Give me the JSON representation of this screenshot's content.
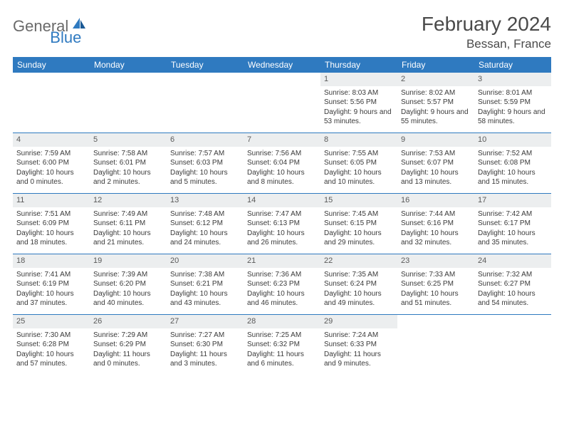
{
  "logo": {
    "text1": "General",
    "text2": "Blue"
  },
  "title": "February 2024",
  "location": "Bessan, France",
  "colors": {
    "header_bar": "#2f7ac0",
    "daynum_bg": "#eceeef",
    "text": "#3a3a3a",
    "title_text": "#4a4a4a",
    "logo_gray": "#6a6a6a",
    "logo_blue": "#2f7ac0",
    "row_border": "#2f7ac0"
  },
  "weekdays": [
    "Sunday",
    "Monday",
    "Tuesday",
    "Wednesday",
    "Thursday",
    "Friday",
    "Saturday"
  ],
  "weeks": [
    [
      null,
      null,
      null,
      null,
      {
        "n": "1",
        "sr": "8:03 AM",
        "ss": "5:56 PM",
        "dl": "9 hours and 53 minutes."
      },
      {
        "n": "2",
        "sr": "8:02 AM",
        "ss": "5:57 PM",
        "dl": "9 hours and 55 minutes."
      },
      {
        "n": "3",
        "sr": "8:01 AM",
        "ss": "5:59 PM",
        "dl": "9 hours and 58 minutes."
      }
    ],
    [
      {
        "n": "4",
        "sr": "7:59 AM",
        "ss": "6:00 PM",
        "dl": "10 hours and 0 minutes."
      },
      {
        "n": "5",
        "sr": "7:58 AM",
        "ss": "6:01 PM",
        "dl": "10 hours and 2 minutes."
      },
      {
        "n": "6",
        "sr": "7:57 AM",
        "ss": "6:03 PM",
        "dl": "10 hours and 5 minutes."
      },
      {
        "n": "7",
        "sr": "7:56 AM",
        "ss": "6:04 PM",
        "dl": "10 hours and 8 minutes."
      },
      {
        "n": "8",
        "sr": "7:55 AM",
        "ss": "6:05 PM",
        "dl": "10 hours and 10 minutes."
      },
      {
        "n": "9",
        "sr": "7:53 AM",
        "ss": "6:07 PM",
        "dl": "10 hours and 13 minutes."
      },
      {
        "n": "10",
        "sr": "7:52 AM",
        "ss": "6:08 PM",
        "dl": "10 hours and 15 minutes."
      }
    ],
    [
      {
        "n": "11",
        "sr": "7:51 AM",
        "ss": "6:09 PM",
        "dl": "10 hours and 18 minutes."
      },
      {
        "n": "12",
        "sr": "7:49 AM",
        "ss": "6:11 PM",
        "dl": "10 hours and 21 minutes."
      },
      {
        "n": "13",
        "sr": "7:48 AM",
        "ss": "6:12 PM",
        "dl": "10 hours and 24 minutes."
      },
      {
        "n": "14",
        "sr": "7:47 AM",
        "ss": "6:13 PM",
        "dl": "10 hours and 26 minutes."
      },
      {
        "n": "15",
        "sr": "7:45 AM",
        "ss": "6:15 PM",
        "dl": "10 hours and 29 minutes."
      },
      {
        "n": "16",
        "sr": "7:44 AM",
        "ss": "6:16 PM",
        "dl": "10 hours and 32 minutes."
      },
      {
        "n": "17",
        "sr": "7:42 AM",
        "ss": "6:17 PM",
        "dl": "10 hours and 35 minutes."
      }
    ],
    [
      {
        "n": "18",
        "sr": "7:41 AM",
        "ss": "6:19 PM",
        "dl": "10 hours and 37 minutes."
      },
      {
        "n": "19",
        "sr": "7:39 AM",
        "ss": "6:20 PM",
        "dl": "10 hours and 40 minutes."
      },
      {
        "n": "20",
        "sr": "7:38 AM",
        "ss": "6:21 PM",
        "dl": "10 hours and 43 minutes."
      },
      {
        "n": "21",
        "sr": "7:36 AM",
        "ss": "6:23 PM",
        "dl": "10 hours and 46 minutes."
      },
      {
        "n": "22",
        "sr": "7:35 AM",
        "ss": "6:24 PM",
        "dl": "10 hours and 49 minutes."
      },
      {
        "n": "23",
        "sr": "7:33 AM",
        "ss": "6:25 PM",
        "dl": "10 hours and 51 minutes."
      },
      {
        "n": "24",
        "sr": "7:32 AM",
        "ss": "6:27 PM",
        "dl": "10 hours and 54 minutes."
      }
    ],
    [
      {
        "n": "25",
        "sr": "7:30 AM",
        "ss": "6:28 PM",
        "dl": "10 hours and 57 minutes."
      },
      {
        "n": "26",
        "sr": "7:29 AM",
        "ss": "6:29 PM",
        "dl": "11 hours and 0 minutes."
      },
      {
        "n": "27",
        "sr": "7:27 AM",
        "ss": "6:30 PM",
        "dl": "11 hours and 3 minutes."
      },
      {
        "n": "28",
        "sr": "7:25 AM",
        "ss": "6:32 PM",
        "dl": "11 hours and 6 minutes."
      },
      {
        "n": "29",
        "sr": "7:24 AM",
        "ss": "6:33 PM",
        "dl": "11 hours and 9 minutes."
      },
      null,
      null
    ]
  ],
  "labels": {
    "sunrise": "Sunrise: ",
    "sunset": "Sunset: ",
    "daylight": "Daylight: "
  }
}
